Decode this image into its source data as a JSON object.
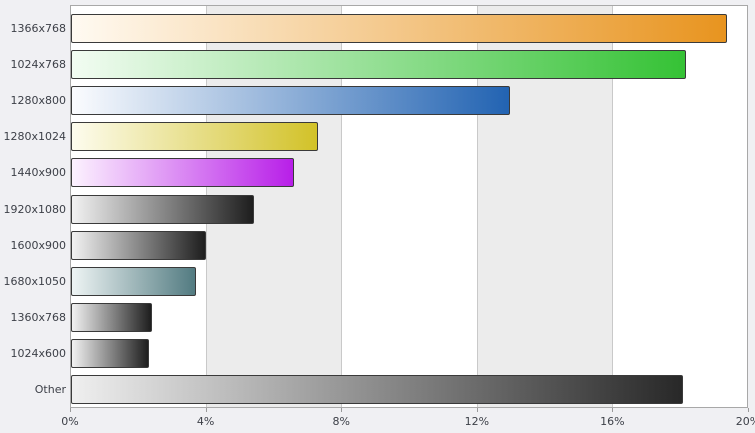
{
  "chart_data": {
    "type": "bar",
    "orientation": "horizontal",
    "title": "",
    "xlabel": "",
    "ylabel": "",
    "unit": "%",
    "categories": [
      "1366x768",
      "1024x768",
      "1280x800",
      "1280x1024",
      "1440x900",
      "1920x1080",
      "1600x900",
      "1680x1050",
      "1360x768",
      "1024x600",
      "Other"
    ],
    "values": [
      19.4,
      18.2,
      13.0,
      7.3,
      6.6,
      5.4,
      4.0,
      3.7,
      2.4,
      2.3,
      18.1
    ],
    "xlim": [
      0,
      20
    ],
    "x_ticks": [
      "0%",
      "4%",
      "8%",
      "12%",
      "16%",
      "20%"
    ],
    "x_tick_values": [
      0,
      4,
      8,
      12,
      16,
      20
    ],
    "grid": "vertical gridlines with alternating background stripes",
    "legend": "none",
    "bar_colors": [
      {
        "start": "#fffaf2",
        "end": "#e8941f"
      },
      {
        "start": "#f2fcf2",
        "end": "#35c235"
      },
      {
        "start": "#fbfcfe",
        "end": "#2263b2"
      },
      {
        "start": "#fdfcee",
        "end": "#d2c228"
      },
      {
        "start": "#fcf2fe",
        "end": "#b81fe8"
      },
      {
        "start": "#f2f2f2",
        "end": "#1e1e1e"
      },
      {
        "start": "#f2f2f2",
        "end": "#1e1e1e"
      },
      {
        "start": "#eef4f4",
        "end": "#527b81"
      },
      {
        "start": "#f2f2f2",
        "end": "#1e1e1e"
      },
      {
        "start": "#f2f2f2",
        "end": "#1e1e1e"
      },
      {
        "start": "#efefef",
        "end": "#282828"
      }
    ]
  },
  "colors": {
    "page_background": "#f0f0f3",
    "plot_border": "#a8a8a8",
    "gridline": "#c9c9c9",
    "bar_border": "#3a3a3a",
    "label_text": "#3d4048",
    "stripe_light": "#ffffff",
    "stripe_dark": "#ececec"
  }
}
